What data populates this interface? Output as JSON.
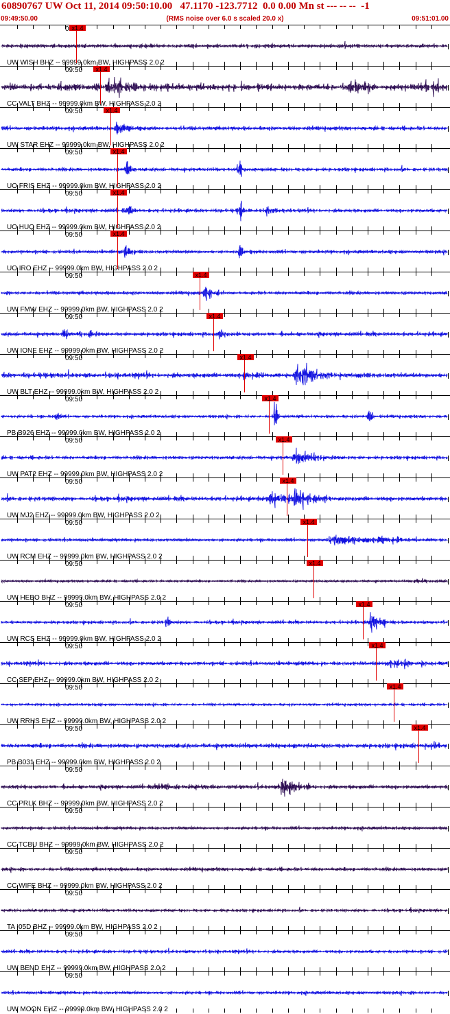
{
  "header": {
    "title": "60890767 UW Oct 11, 2014 09:50:10.00   47.1170 -123.7712  0.0 0.00 Mn st --- -- --  -1",
    "start_time": "09:49:50.00",
    "note": "(RMS noise over 6.0 s scaled 20.0 x)",
    "end_time": "09:51:01.00"
  },
  "colors": {
    "trace_blue": "#1010e0",
    "trace_dark": "#2a0a50",
    "pick_red": "#e00000",
    "text_red": "#c00000"
  },
  "chart_data": {
    "type": "line",
    "title": "60890767 UW Oct 11, 2014 09:50:10.00   47.1170 -123.7712  0.0 0.00 Mn st --- -- --  -1",
    "x_start": "09:49:50.00",
    "x_end": "09:51:01.00",
    "minute_label": "09:50",
    "pick_label": "x1.4",
    "series": [
      {
        "name": "UW WISH BHZ -- 99999.0km BW, HIGHPASS  2.0  2",
        "color": "dark",
        "noise": 0.25,
        "pick": 0.168,
        "events": []
      },
      {
        "name": "CC VALT BHZ -- 99999.0km BW, HIGHPASS  2.0  2",
        "color": "dark",
        "noise": 0.45,
        "pick": 0.222,
        "events": [
          {
            "t": 0.24,
            "amp": 1.0,
            "dur": 0.05
          },
          {
            "t": 0.78,
            "amp": 0.75,
            "dur": 0.06
          },
          {
            "t": 0.97,
            "amp": 0.55,
            "dur": 0.03
          }
        ]
      },
      {
        "name": "UW STAR EHZ -- 99999.0km BW, HIGHPASS  2.0  2",
        "color": "blue",
        "noise": 0.25,
        "pick": 0.245,
        "events": [
          {
            "t": 0.26,
            "amp": 0.8,
            "dur": 0.03
          }
        ]
      },
      {
        "name": "UO FRIS EHZ -- 99999.0km BW, HIGHPASS  2.0  2",
        "color": "blue",
        "noise": 0.22,
        "pick": 0.26,
        "events": [
          {
            "t": 0.282,
            "amp": 1.3,
            "dur": 0.008
          },
          {
            "t": 0.536,
            "amp": 1.3,
            "dur": 0.006
          }
        ]
      },
      {
        "name": "UO HUQ EHZ -- 99999.0km BW, HIGHPASS  2.0  2",
        "color": "blue",
        "noise": 0.22,
        "pick": 0.26,
        "events": [
          {
            "t": 0.282,
            "amp": 1.3,
            "dur": 0.008
          },
          {
            "t": 0.536,
            "amp": 1.3,
            "dur": 0.006
          },
          {
            "t": 0.595,
            "amp": 0.55,
            "dur": 0.02
          }
        ]
      },
      {
        "name": "UO IRO EHZ -- 99999.0km BW, HIGHPASS  2.0  2",
        "color": "blue",
        "noise": 0.22,
        "pick": 0.26,
        "events": [
          {
            "t": 0.282,
            "amp": 1.3,
            "dur": 0.008
          },
          {
            "t": 0.536,
            "amp": 1.3,
            "dur": 0.006
          }
        ]
      },
      {
        "name": "UW FMW EHZ -- 99999.0km BW, HIGHPASS  2.0  2",
        "color": "blue",
        "noise": 0.22,
        "pick": 0.445,
        "events": [
          {
            "t": 0.458,
            "amp": 0.8,
            "dur": 0.02
          }
        ]
      },
      {
        "name": "UW IONE EHZ -- 99999.0km BW, HIGHPASS  2.0  2",
        "color": "blue",
        "noise": 0.25,
        "pick": 0.475,
        "events": [
          {
            "t": 0.14,
            "amp": 0.45,
            "dur": 0.02
          },
          {
            "t": 0.2,
            "amp": 0.4,
            "dur": 0.015
          },
          {
            "t": 0.49,
            "amp": 0.45,
            "dur": 0.02
          }
        ]
      },
      {
        "name": "UW BLT EHZ -- 99999.0km BW, HIGHPASS  2.0  2",
        "color": "blue",
        "noise": 0.32,
        "pick": 0.545,
        "events": [
          {
            "t": 0.545,
            "amp": 0.55,
            "dur": 0.03
          },
          {
            "t": 0.665,
            "amp": 1.3,
            "dur": 0.035
          }
        ]
      },
      {
        "name": "PB B926 EHZ -- 99999.0km BW, HIGHPASS  2.0  2",
        "color": "blue",
        "noise": 0.18,
        "pick": 0.6,
        "events": [
          {
            "t": 0.126,
            "amp": 0.7,
            "dur": 0.004
          },
          {
            "t": 0.615,
            "amp": 1.2,
            "dur": 0.008
          },
          {
            "t": 0.825,
            "amp": 1.1,
            "dur": 0.006
          }
        ]
      },
      {
        "name": "UW PAT2 EHZ -- 99999.0km BW, HIGHPASS  2.0  2",
        "color": "blue",
        "noise": 0.22,
        "pick": 0.63,
        "events": [
          {
            "t": 0.66,
            "amp": 1.0,
            "dur": 0.04
          }
        ]
      },
      {
        "name": "UW MJ2 EHZ -- 99999.0km BW, HIGHPASS  2.0  2",
        "color": "blue",
        "noise": 0.28,
        "pick": 0.64,
        "events": [
          {
            "t": 0.6,
            "amp": 0.75,
            "dur": 0.06
          },
          {
            "t": 0.66,
            "amp": 1.1,
            "dur": 0.04
          }
        ]
      },
      {
        "name": "UW RCM EHZ -- 99999.0km BW, HIGHPASS  2.0  2",
        "color": "blue",
        "noise": 0.2,
        "pick": 0.686,
        "events": [
          {
            "t": 0.74,
            "amp": 0.5,
            "dur": 0.1
          },
          {
            "t": 0.85,
            "amp": 0.45,
            "dur": 0.06
          }
        ]
      },
      {
        "name": "UW HEBO BHZ -- 99999.0km BW, HIGHPASS  2.0  2",
        "color": "dark",
        "noise": 0.15,
        "pick": 0.7,
        "events": [
          {
            "t": 0.93,
            "amp": 0.3,
            "dur": 0.05
          }
        ]
      },
      {
        "name": "UW RCS EHZ -- 99999.0km BW, HIGHPASS  2.0  2",
        "color": "blue",
        "noise": 0.2,
        "pick": 0.81,
        "events": [
          {
            "t": 0.376,
            "amp": 0.9,
            "dur": 0.004
          },
          {
            "t": 0.83,
            "amp": 0.8,
            "dur": 0.03
          }
        ]
      },
      {
        "name": "CC SEP EHZ -- 99999.0km BW, HIGHPASS  2.0  2",
        "color": "blue",
        "noise": 0.25,
        "pick": 0.84,
        "events": [
          {
            "t": 0.87,
            "amp": 0.9,
            "dur": 0.04
          }
        ]
      },
      {
        "name": "UW RRHS EHZ -- 99999.0km BW, HIGHPASS  2.0  2",
        "color": "blue",
        "noise": 0.15,
        "pick": 0.88,
        "events": []
      },
      {
        "name": "PB B031 EHZ -- 99999.0km BW, HIGHPASS  2.0  2",
        "color": "blue",
        "noise": 0.3,
        "pick": 0.935,
        "events": [
          {
            "t": 0.965,
            "amp": 0.6,
            "dur": 0.02
          }
        ]
      },
      {
        "name": "CC PRLK BHZ -- 99999.0km BW, HIGHPASS  2.0  2",
        "color": "dark",
        "noise": 0.25,
        "pick": null,
        "events": [
          {
            "t": 0.36,
            "amp": 0.5,
            "dur": 0.04
          },
          {
            "t": 0.63,
            "amp": 1.2,
            "dur": 0.03
          }
        ]
      },
      {
        "name": "CC TCBU BHZ -- 99999.0km BW, HIGHPASS  2.0  2",
        "color": "dark",
        "noise": 0.2,
        "pick": null,
        "events": []
      },
      {
        "name": "CC WIFE BHZ -- 99999.0km BW, HIGHPASS  2.0  2",
        "color": "dark",
        "noise": 0.22,
        "pick": null,
        "events": []
      },
      {
        "name": "TA I05D BHZ -- 99999.0km BW, HIGHPASS  2.0  2",
        "color": "dark",
        "noise": 0.18,
        "pick": null,
        "events": []
      },
      {
        "name": "UW BEND EHZ -- 99999.0km BW, HIGHPASS  2.0  2",
        "color": "blue",
        "noise": 0.2,
        "pick": null,
        "events": []
      },
      {
        "name": "UW MOON EHZ -- 99999.0km BW, HIGHPASS  2.0  2",
        "color": "blue",
        "noise": 0.2,
        "pick": null,
        "events": []
      }
    ]
  }
}
